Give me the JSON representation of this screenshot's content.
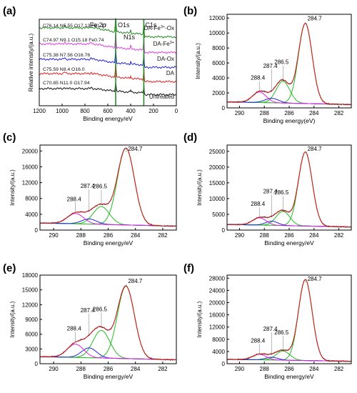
{
  "chart_data": [
    {
      "id": "a",
      "panel_label": "(a)",
      "type": "line",
      "xlabel": "Binding energy/eV",
      "ylabel": "Relative intensity/(a.u.)",
      "xlim": [
        1200,
        0
      ],
      "x_ticks": [
        "1200",
        "1000",
        "800",
        "600",
        "400",
        "200",
        "0"
      ],
      "peak_labels": [
        "Fe 2p",
        "O1s",
        "N1s",
        "C1s"
      ],
      "series": [
        {
          "name": "DA-Fe3+-Ox",
          "name_main": "DA-Fe",
          "name_sup": "3+",
          "name_tail": "-Ox",
          "color": "#1f8b1f",
          "composition": "C76.14 N5.55 O17.13 Fe1.17"
        },
        {
          "name": "DA-Fe3+",
          "name_main": "DA-Fe",
          "name_sup": "3+",
          "name_tail": "",
          "color": "#e040e0",
          "composition": "C74.97 N9.1 O15.18 Fe0.74"
        },
        {
          "name": "DA-Ox",
          "name_main": "DA-Ox",
          "name_sup": "",
          "name_tail": "",
          "color": "#2020dd",
          "composition": "C75.38 N7.56 O16.76"
        },
        {
          "name": "DA",
          "name_main": "DA",
          "name_sup": "",
          "name_tail": "",
          "color": "#dd2020",
          "composition": "C75.59 N8.4 O16.0"
        },
        {
          "name": "Untreated",
          "name_main": "Untreated",
          "name_sup": "",
          "name_tail": "",
          "color": "#111111",
          "composition": "C70.85 N11.0 O17.94"
        }
      ]
    },
    {
      "id": "b",
      "panel_label": "(b)",
      "type": "line",
      "xlabel": "Binding energy(eV)",
      "ylabel": "Intensity/(a.u.)",
      "xlim": [
        291,
        281
      ],
      "ylim": [
        0,
        12500
      ],
      "x_ticks": [
        290,
        288,
        286,
        284,
        282
      ],
      "y_ticks": [
        0,
        2000,
        4000,
        6000,
        8000,
        10000,
        12000
      ],
      "background": 450,
      "components": [
        {
          "center": 284.7,
          "height": 10700,
          "sigma": 0.55,
          "color": "#22bb22",
          "label": "284.7"
        },
        {
          "center": 286.5,
          "height": 2900,
          "sigma": 0.55,
          "color": "#22bb22",
          "label": "286.5"
        },
        {
          "center": 287.4,
          "height": 600,
          "sigma": 0.55,
          "color": "#2222dd",
          "label": "287.4"
        },
        {
          "center": 288.4,
          "height": 1400,
          "sigma": 0.55,
          "color": "#dd22dd",
          "label": "288.4"
        }
      ]
    },
    {
      "id": "c",
      "panel_label": "(c)",
      "type": "line",
      "xlabel": "Binding energy/eV",
      "ylabel": "Intensity/(a.u.)",
      "xlim": [
        291,
        281
      ],
      "ylim": [
        0,
        21500
      ],
      "x_ticks": [
        290,
        288,
        286,
        284,
        282
      ],
      "y_ticks": [
        0,
        4000,
        8000,
        12000,
        16000,
        20000
      ],
      "background": 1000,
      "components": [
        {
          "center": 284.7,
          "height": 19400,
          "sigma": 0.62,
          "color": "#22bb22",
          "label": "284.7"
        },
        {
          "center": 286.5,
          "height": 4500,
          "sigma": 0.6,
          "color": "#22bb22",
          "label": "286.5"
        },
        {
          "center": 287.4,
          "height": 1300,
          "sigma": 0.55,
          "color": "#2222dd",
          "label": "287.4"
        },
        {
          "center": 288.4,
          "height": 2600,
          "sigma": 0.6,
          "color": "#dd22dd",
          "label": "288.4"
        }
      ]
    },
    {
      "id": "d",
      "panel_label": "(d)",
      "type": "line",
      "xlabel": "Binding energy/eV",
      "ylabel": "Intensity/(a.u.)",
      "xlim": [
        291,
        281
      ],
      "ylim": [
        0,
        27000
      ],
      "x_ticks": [
        290,
        288,
        286,
        284,
        282
      ],
      "y_ticks": [
        0,
        5000,
        10000,
        15000,
        20000,
        25000
      ],
      "background": 1000,
      "components": [
        {
          "center": 284.7,
          "height": 23500,
          "sigma": 0.55,
          "color": "#22bb22",
          "label": "284.7"
        },
        {
          "center": 286.5,
          "height": 4500,
          "sigma": 0.55,
          "color": "#22bb22",
          "label": "286.5"
        },
        {
          "center": 287.4,
          "height": 1300,
          "sigma": 0.5,
          "color": "#2222dd",
          "label": "287.4"
        },
        {
          "center": 288.4,
          "height": 2300,
          "sigma": 0.55,
          "color": "#dd22dd",
          "label": "288.4"
        }
      ]
    },
    {
      "id": "e",
      "panel_label": "(e)",
      "type": "line",
      "xlabel": "Binding energy/eV",
      "ylabel": "Intensity/(a.u.)",
      "xlim": [
        291,
        281
      ],
      "ylim": [
        0,
        18000
      ],
      "x_ticks": [
        290,
        288,
        286,
        284,
        282
      ],
      "y_ticks": [
        0,
        3000,
        6000,
        9000,
        12000,
        15000,
        18000
      ],
      "background": 800,
      "components": [
        {
          "center": 284.7,
          "height": 14700,
          "sigma": 0.62,
          "color": "#22bb22",
          "label": "284.7"
        },
        {
          "center": 286.5,
          "height": 5600,
          "sigma": 0.62,
          "color": "#22bb22",
          "label": "286.5"
        },
        {
          "center": 287.4,
          "height": 2000,
          "sigma": 0.55,
          "color": "#2222dd",
          "label": "287.4"
        },
        {
          "center": 288.4,
          "height": 2700,
          "sigma": 0.6,
          "color": "#dd22dd",
          "label": "288.4"
        }
      ]
    },
    {
      "id": "f",
      "panel_label": "(f)",
      "type": "line",
      "xlabel": "Binding energy/eV",
      "ylabel": "Intensity/(a.u.)",
      "xlim": [
        291,
        281
      ],
      "ylim": [
        0,
        29000
      ],
      "x_ticks": [
        290,
        288,
        286,
        284,
        282
      ],
      "y_ticks": [
        0,
        4000,
        8000,
        12000,
        16000,
        20000,
        24000,
        28000
      ],
      "background": 800,
      "components": [
        {
          "center": 284.7,
          "height": 26500,
          "sigma": 0.55,
          "color": "#22bb22",
          "label": "284.7"
        },
        {
          "center": 286.5,
          "height": 3000,
          "sigma": 0.55,
          "color": "#22bb22",
          "label": "286.5"
        },
        {
          "center": 287.4,
          "height": 900,
          "sigma": 0.5,
          "color": "#2222dd",
          "label": "287.4"
        },
        {
          "center": 288.4,
          "height": 1800,
          "sigma": 0.55,
          "color": "#dd22dd",
          "label": "288.4"
        }
      ]
    }
  ]
}
